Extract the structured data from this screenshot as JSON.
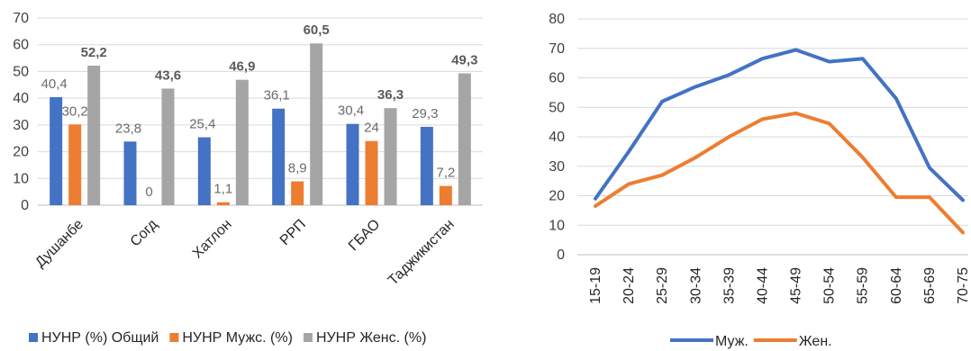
{
  "chart_data": [
    {
      "type": "bar",
      "categories": [
        "Душанбе",
        "Согд",
        "Хатлон",
        "РРП",
        "ГБАО",
        "Таджикистан"
      ],
      "series": [
        {
          "name": "НУНР (%) Общий",
          "values": [
            40.4,
            23.8,
            25.4,
            36.1,
            30.4,
            29.3
          ],
          "labels": [
            "40,4",
            "23,8",
            "25,4",
            "36,1",
            "30,4",
            "29,3"
          ],
          "color": "#4472c4"
        },
        {
          "name": "НУНР Мужс. (%)",
          "values": [
            30.2,
            0,
            1.1,
            8.9,
            24,
            7.2
          ],
          "labels": [
            "30,2",
            "0",
            "1,1",
            "8,9",
            "24",
            "7,2"
          ],
          "color": "#ed7d31"
        },
        {
          "name": "НУНР Женс. (%)",
          "values": [
            52.2,
            43.6,
            46.9,
            60.5,
            36.3,
            49.3
          ],
          "labels": [
            "52,2",
            "43,6",
            "46,9",
            "60,5",
            "36,3",
            "49,3"
          ],
          "color": "#a5a5a5"
        }
      ],
      "yticks": [
        "0",
        "10",
        "20",
        "30",
        "40",
        "50",
        "60",
        "70"
      ],
      "ylim": [
        0,
        70
      ],
      "grid": true,
      "legend": "bottom"
    },
    {
      "type": "line",
      "categories": [
        "15-19",
        "20-24",
        "25-29",
        "30-34",
        "35-39",
        "40-44",
        "45-49",
        "50-54",
        "55-59",
        "60-64",
        "65-69",
        "70-75"
      ],
      "series": [
        {
          "name": "Муж.",
          "values": [
            19,
            35,
            52,
            57,
            61,
            66.5,
            69.5,
            65.5,
            66.5,
            53,
            29.5,
            18.5
          ],
          "color": "#4472c4"
        },
        {
          "name": "Жен.",
          "values": [
            16.5,
            24,
            27,
            33,
            40,
            46,
            48,
            44.5,
            33,
            19.5,
            19.5,
            7.5
          ],
          "color": "#ed7d31"
        }
      ],
      "yticks": [
        "0",
        "10",
        "20",
        "30",
        "40",
        "50",
        "60",
        "70",
        "80"
      ],
      "ylim": [
        0,
        80
      ],
      "grid": true,
      "legend": "bottom"
    }
  ]
}
